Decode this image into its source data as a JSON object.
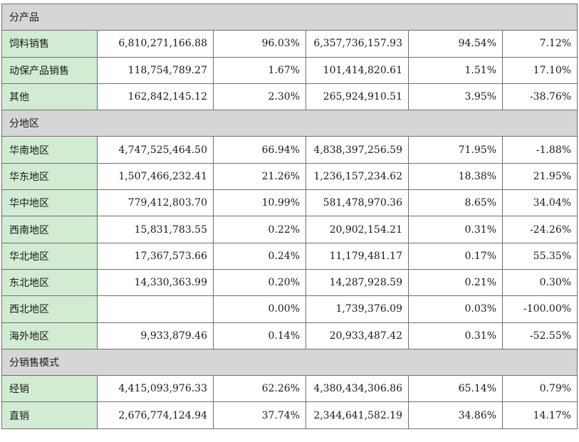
{
  "table": {
    "sections": [
      {
        "title": "分产品",
        "rows": [
          {
            "label": "饲料销售",
            "cells": [
              "6,810,271,166.88",
              "96.03%",
              "6,357,736,157.93",
              "94.54%",
              "7.12%"
            ]
          },
          {
            "label": "动保产品销售",
            "cells": [
              "118,754,789.27",
              "1.67%",
              "101,414,820.61",
              "1.51%",
              "17.10%"
            ]
          },
          {
            "label": "其他",
            "cells": [
              "162,842,145.12",
              "2.30%",
              "265,924,910.51",
              "3.95%",
              "-38.76%"
            ]
          }
        ]
      },
      {
        "title": "分地区",
        "rows": [
          {
            "label": "华南地区",
            "cells": [
              "4,747,525,464.50",
              "66.94%",
              "4,838,397,256.59",
              "71.95%",
              "-1.88%"
            ]
          },
          {
            "label": "华东地区",
            "cells": [
              "1,507,466,232.41",
              "21.26%",
              "1,236,157,234.62",
              "18.38%",
              "21.95%"
            ]
          },
          {
            "label": "华中地区",
            "cells": [
              "779,412,803.70",
              "10.99%",
              "581,478,970.36",
              "8.65%",
              "34.04%"
            ]
          },
          {
            "label": "西南地区",
            "cells": [
              "15,831,783.55",
              "0.22%",
              "20,902,154.21",
              "0.31%",
              "-24.26%"
            ]
          },
          {
            "label": "华北地区",
            "cells": [
              "17,367,573.66",
              "0.24%",
              "11,179,481.17",
              "0.17%",
              "55.35%"
            ]
          },
          {
            "label": "东北地区",
            "cells": [
              "14,330,363.99",
              "0.20%",
              "14,287,928.59",
              "0.21%",
              "0.30%"
            ]
          },
          {
            "label": "西北地区",
            "cells": [
              "",
              "0.00%",
              "1,739,376.09",
              "0.03%",
              "-100.00%"
            ]
          },
          {
            "label": "海外地区",
            "cells": [
              "9,933,879.46",
              "0.14%",
              "20,933,487.42",
              "0.31%",
              "-52.55%"
            ]
          }
        ]
      },
      {
        "title": "分销售模式",
        "rows": [
          {
            "label": "经销",
            "cells": [
              "4,415,093,976.33",
              "62.26%",
              "4,380,434,306.86",
              "65.14%",
              "0.79%"
            ]
          },
          {
            "label": "直销",
            "cells": [
              "2,676,774,124.94",
              "37.74%",
              "2,344,641,582.19",
              "34.86%",
              "14.17%"
            ]
          }
        ]
      }
    ]
  },
  "colors": {
    "section_bg": "#d6d6d6",
    "label_bg": "#d2ecd4",
    "border": "#6f6f6f"
  }
}
